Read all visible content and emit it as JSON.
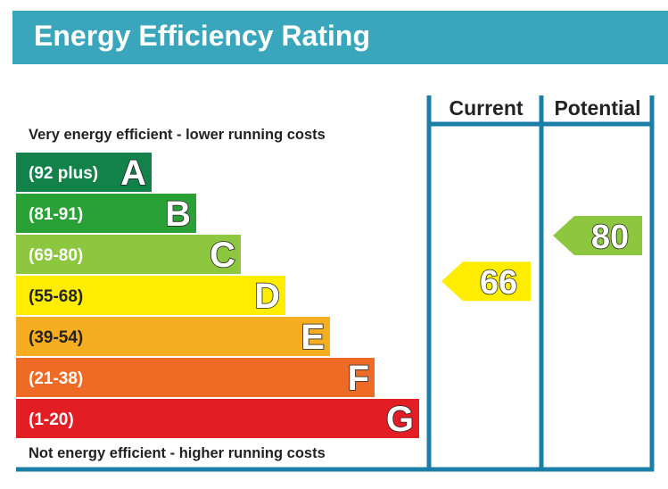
{
  "header": {
    "title": "Energy Efficiency Rating"
  },
  "colors": {
    "header": "#3aa6bb",
    "frame": "#1b7ea6"
  },
  "chart_data": {
    "type": "bar",
    "top_label": "Very energy efficient - lower running costs",
    "bottom_label": "Not energy efficient - higher running costs",
    "columns": [
      "Current",
      "Potential"
    ],
    "bands": [
      {
        "range": "(92 plus)",
        "letter": "A",
        "color": "#12814a"
      },
      {
        "range": "(81-91)",
        "letter": "B",
        "color": "#2aa136"
      },
      {
        "range": "(69-80)",
        "letter": "C",
        "color": "#8dc63f"
      },
      {
        "range": "(55-68)",
        "letter": "D",
        "color": "#ffed00"
      },
      {
        "range": "(39-54)",
        "letter": "E",
        "color": "#f7ad20"
      },
      {
        "range": "(21-38)",
        "letter": "F",
        "color": "#ed6b25"
      },
      {
        "range": "(1-20)",
        "letter": "G",
        "color": "#e31d24"
      }
    ],
    "ratings": [
      {
        "column": "Current",
        "value": 66,
        "band": "D",
        "color": "#ffed00"
      },
      {
        "column": "Potential",
        "value": 80,
        "band": "C",
        "color": "#8dc63f"
      }
    ]
  }
}
